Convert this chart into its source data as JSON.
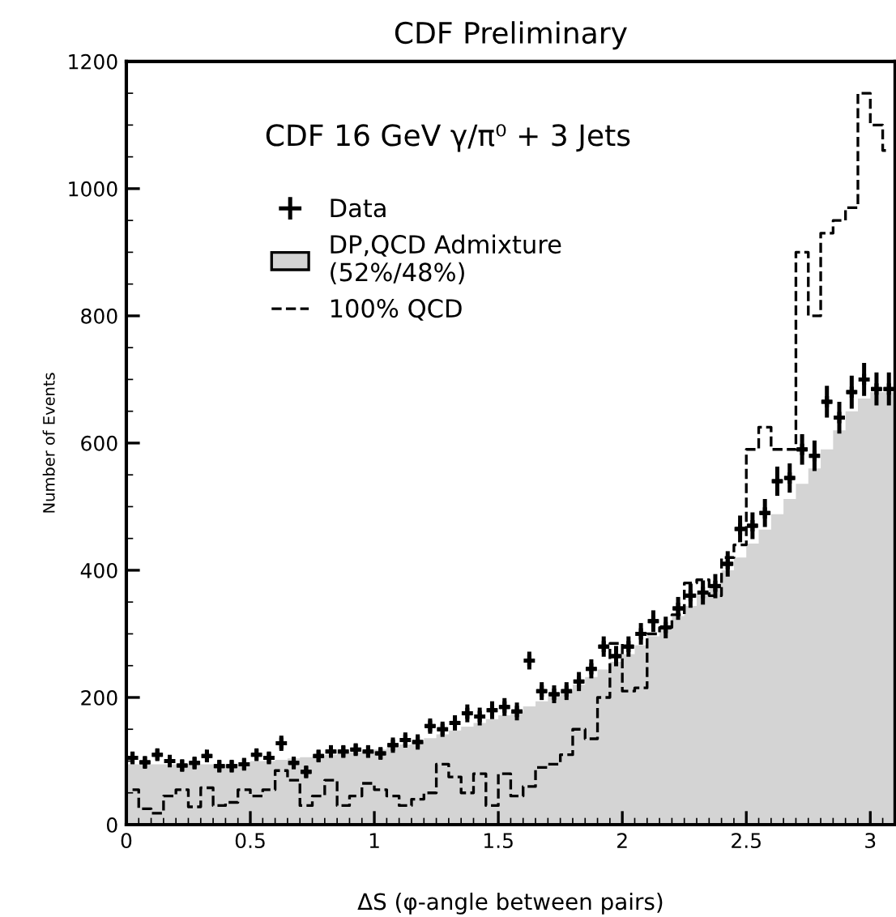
{
  "chart_data": {
    "type": "histogram",
    "title": "CDF Preliminary",
    "xlabel": "ΔS (φ-angle between pairs)",
    "ylabel": "Number of Events",
    "annotations": [
      "CDF 16 GeV γ/π⁰ + 3 Jets"
    ],
    "bins": [
      0,
      0.05,
      0.1,
      0.15,
      0.2,
      0.25,
      0.3,
      0.35,
      0.4,
      0.45,
      0.5,
      0.55,
      0.6,
      0.65,
      0.7,
      0.75,
      0.8,
      0.85,
      0.9,
      0.95,
      1.0,
      1.05,
      1.1,
      1.15,
      1.2,
      1.25,
      1.3,
      1.35,
      1.4,
      1.45,
      1.5,
      1.55,
      1.6,
      1.65,
      1.7,
      1.75,
      1.8,
      1.85,
      1.9,
      1.95,
      2.0,
      2.05,
      2.1,
      2.15,
      2.2,
      2.25,
      2.3,
      2.35,
      2.4,
      2.45,
      2.5,
      2.55,
      2.6,
      2.65,
      2.7,
      2.75,
      2.8,
      2.85,
      2.9,
      2.95,
      3.0,
      3.05,
      3.1
    ],
    "series": [
      {
        "name": "DP,QCD Admixture\n(52%/48%)",
        "color": "#d4d4d4",
        "values": [
          95,
          95,
          95,
          95,
          95,
          95,
          95,
          95,
          95,
          98,
          100,
          100,
          102,
          104,
          106,
          108,
          110,
          112,
          114,
          116,
          118,
          122,
          126,
          130,
          136,
          142,
          148,
          154,
          160,
          166,
          172,
          178,
          186,
          194,
          202,
          210,
          220,
          232,
          244,
          256,
          268,
          282,
          296,
          312,
          328,
          344,
          362,
          380,
          400,
          420,
          442,
          464,
          488,
          512,
          536,
          560,
          590,
          620,
          650,
          670,
          680,
          680
        ]
      },
      {
        "name": "100% QCD",
        "type": "step",
        "color": "#000000",
        "line_style": "dashed",
        "x": [
          0.025,
          0.075,
          0.125,
          0.175,
          0.225,
          0.275,
          0.325,
          0.375,
          0.425,
          0.475,
          0.525,
          0.575,
          0.625,
          0.675,
          0.725,
          0.775,
          0.825,
          0.875,
          0.925,
          0.975,
          1.025,
          1.075,
          1.125,
          1.175,
          1.225,
          1.275,
          1.325,
          1.375,
          1.425,
          1.475,
          1.525,
          1.575,
          1.625,
          1.675,
          1.725,
          1.775,
          1.825,
          1.875,
          1.925,
          1.975,
          2.025,
          2.075,
          2.125,
          2.175,
          2.225,
          2.275,
          2.325,
          2.375,
          2.425,
          2.475,
          2.525,
          2.575,
          2.625,
          2.675,
          2.725,
          2.775,
          2.825,
          2.875,
          2.925,
          2.975,
          3.025,
          3.075
        ],
        "values": [
          55,
          25,
          18,
          45,
          55,
          28,
          58,
          30,
          35,
          55,
          45,
          55,
          85,
          70,
          30,
          45,
          70,
          30,
          45,
          65,
          55,
          45,
          30,
          40,
          50,
          95,
          75,
          50,
          80,
          30,
          80,
          45,
          60,
          90,
          95,
          110,
          150,
          135,
          200,
          285,
          210,
          215,
          300,
          310,
          330,
          380,
          385,
          360,
          420,
          440,
          590,
          625,
          590,
          590,
          900,
          800,
          930,
          950,
          970,
          1150,
          1100,
          1060
        ]
      },
      {
        "name": "Data",
        "type": "scatter",
        "color": "#000000",
        "marker": "cross",
        "x": [
          0.025,
          0.075,
          0.125,
          0.175,
          0.225,
          0.275,
          0.325,
          0.375,
          0.425,
          0.475,
          0.525,
          0.575,
          0.625,
          0.675,
          0.725,
          0.775,
          0.825,
          0.875,
          0.925,
          0.975,
          1.025,
          1.075,
          1.125,
          1.175,
          1.225,
          1.275,
          1.325,
          1.375,
          1.425,
          1.475,
          1.525,
          1.575,
          1.625,
          1.675,
          1.725,
          1.775,
          1.825,
          1.875,
          1.925,
          1.975,
          2.025,
          2.075,
          2.125,
          2.175,
          2.225,
          2.275,
          2.325,
          2.375,
          2.425,
          2.475,
          2.525,
          2.575,
          2.625,
          2.675,
          2.725,
          2.775,
          2.825,
          2.875,
          2.925,
          2.975,
          3.025,
          3.075
        ],
        "values": [
          105,
          98,
          110,
          100,
          93,
          97,
          108,
          92,
          92,
          95,
          110,
          105,
          128,
          97,
          83,
          108,
          115,
          115,
          118,
          115,
          112,
          125,
          133,
          130,
          155,
          150,
          160,
          175,
          170,
          180,
          185,
          178,
          258,
          210,
          205,
          210,
          225,
          245,
          280,
          265,
          280,
          300,
          320,
          310,
          340,
          360,
          365,
          375,
          410,
          465,
          470,
          490,
          540,
          545,
          590,
          580,
          665,
          640,
          680,
          700,
          685,
          685
        ],
        "errors": [
          10,
          10,
          10,
          10,
          10,
          10,
          10,
          10,
          10,
          10,
          10,
          10,
          12,
          10,
          10,
          10,
          10,
          10,
          10,
          10,
          10,
          12,
          12,
          12,
          12,
          12,
          12,
          14,
          14,
          14,
          14,
          14,
          14,
          14,
          14,
          14,
          15,
          15,
          16,
          16,
          16,
          17,
          17,
          17,
          18,
          19,
          19,
          19,
          20,
          21,
          21,
          22,
          23,
          23,
          24,
          24,
          25,
          25,
          26,
          26,
          26,
          26
        ],
        "xerrors": [
          0.02,
          0.02,
          0.02,
          0.02,
          0.02,
          0.02,
          0.02,
          0.02,
          0.02,
          0.02,
          0.02,
          0.02,
          0.02,
          0.02,
          0.02,
          0.02,
          0.02,
          0.02,
          0.02,
          0.02,
          0.02,
          0.02,
          0.02,
          0.02,
          0.02,
          0.02,
          0.02,
          0.02,
          0.02,
          0.02,
          0.02,
          0.02,
          0.02,
          0.02,
          0.02,
          0.02,
          0.02,
          0.02,
          0.02,
          0.02,
          0.02,
          0.02,
          0.02,
          0.02,
          0.02,
          0.02,
          0.02,
          0.02,
          0.02,
          0.02,
          0.02,
          0.02,
          0.02,
          0.02,
          0.02,
          0.02,
          0.02,
          0.02,
          0.02,
          0.02,
          0.02,
          0.02
        ]
      }
    ],
    "xlim": [
      0,
      3.1
    ],
    "xticks": [
      0,
      0.5,
      1,
      1.5,
      2,
      2.5,
      3
    ],
    "ylim": [
      0,
      1200
    ],
    "yticks": [
      0,
      200,
      400,
      600,
      800,
      1000,
      1200
    ],
    "legend": "top left",
    "grid": false
  }
}
